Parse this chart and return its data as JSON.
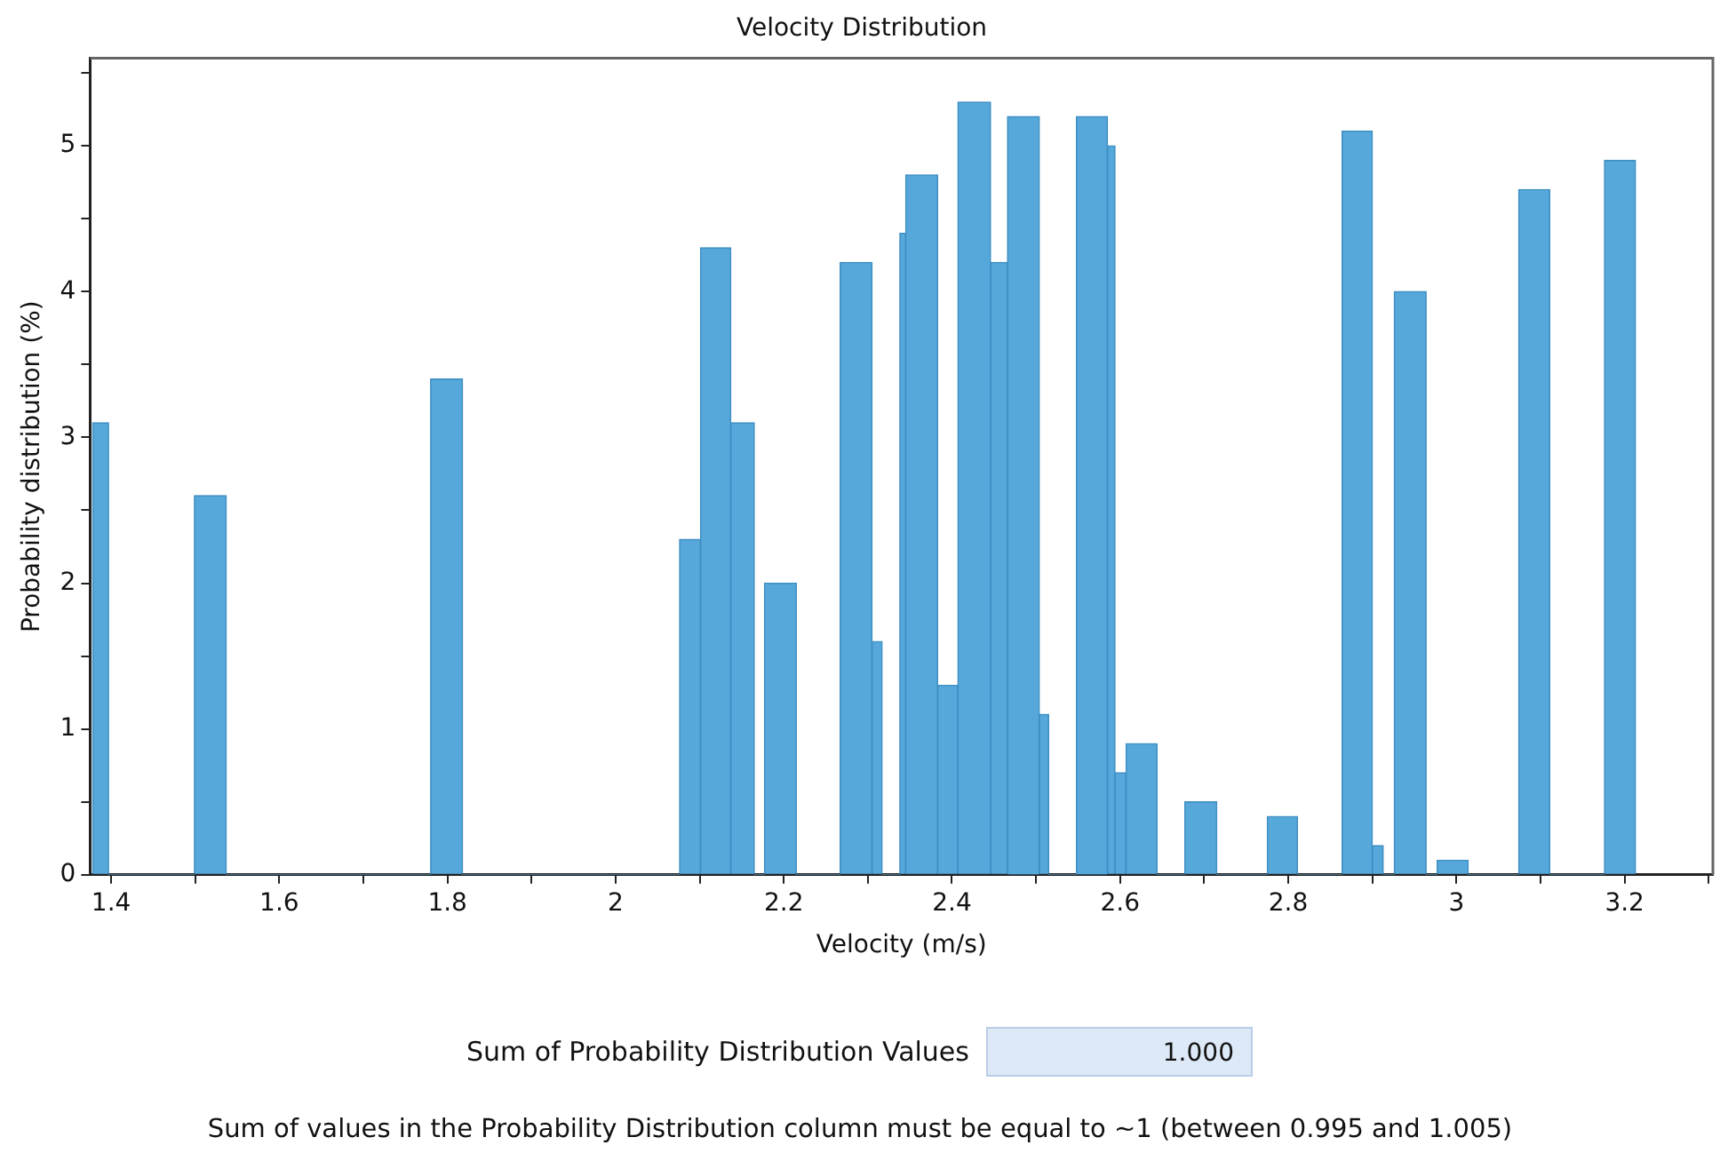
{
  "chart_data": {
    "type": "histogram",
    "title": "Velocity Distribution",
    "xlabel": "Velocity (m/s)",
    "ylabel": "Probability distribution (%)",
    "bins": [
      1.378,
      1.397,
      1.499,
      1.537,
      1.78,
      1.818,
      2.076,
      2.101,
      2.137,
      2.165,
      2.177,
      2.215,
      2.267,
      2.305,
      2.317,
      2.338,
      2.345,
      2.383,
      2.407,
      2.446,
      2.466,
      2.504,
      2.515,
      2.548,
      2.585,
      2.594,
      2.607,
      2.644,
      2.677,
      2.715,
      2.775,
      2.811,
      2.864,
      2.9,
      2.913,
      2.926,
      2.964,
      2.977,
      3.014,
      3.074,
      3.111,
      3.176,
      3.213
    ],
    "values": [
      3.1,
      0,
      2.6,
      0,
      3.4,
      0,
      2.3,
      4.3,
      3.1,
      0,
      2.0,
      0,
      4.2,
      1.6,
      0,
      4.4,
      4.8,
      1.3,
      5.3,
      4.2,
      5.2,
      1.1,
      0,
      5.2,
      5.0,
      0.7,
      0.9,
      0,
      0.5,
      0,
      0.4,
      0,
      5.1,
      0.2,
      0,
      4.0,
      0,
      0.1,
      0,
      4.7,
      0,
      4.9
    ],
    "color": "#56a8da",
    "xlim": [
      1.375,
      3.305
    ],
    "xticks": [
      1.4,
      {
        "value": 1.5,
        "label": null
      },
      1.6,
      {
        "value": 1.7,
        "label": null
      },
      1.8,
      {
        "value": 1.9,
        "label": null
      },
      2,
      {
        "value": 2.1,
        "label": null
      },
      2.2,
      {
        "value": 2.3,
        "label": null
      },
      2.4,
      {
        "value": 2.5,
        "label": null
      },
      2.6,
      {
        "value": 2.7,
        "label": null
      },
      2.8,
      {
        "value": 2.9,
        "label": null
      },
      3,
      {
        "value": 3.1,
        "label": null
      },
      3.2,
      {
        "value": 3.3,
        "label": null
      }
    ],
    "ylim": [
      0,
      5.6
    ],
    "yticks": [
      0,
      {
        "value": 0.5,
        "label": null
      },
      1,
      {
        "value": 1.5,
        "label": null
      },
      2,
      {
        "value": 2.5,
        "label": null
      },
      3,
      {
        "value": 3.5,
        "label": null
      },
      4,
      {
        "value": 4.5,
        "label": null
      },
      5,
      {
        "value": 5.5,
        "label": null
      }
    ],
    "annotations": [
      "Sum of Probability Distribution Values",
      "1.000",
      "Sum of values in the Probability Distribution column must be equal to ~1 (between 0.995 and 1.005)"
    ]
  }
}
